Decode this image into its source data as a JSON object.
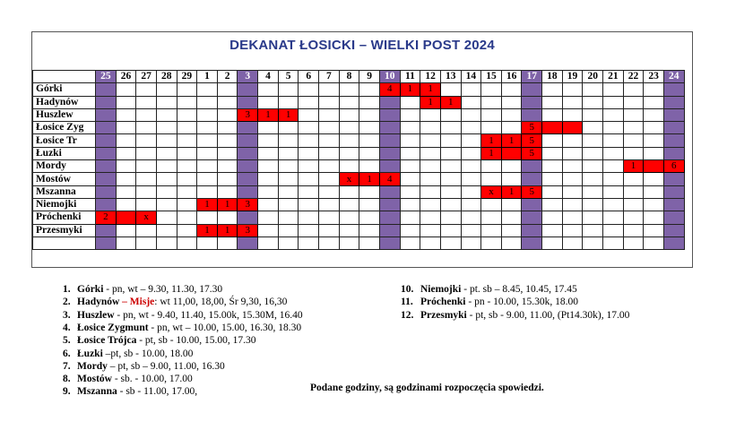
{
  "title": "DEKANAT ŁOSICKI – WIELKI POST 2024",
  "days": [
    "25",
    "26",
    "27",
    "28",
    "29",
    "1",
    "2",
    "3",
    "4",
    "5",
    "6",
    "7",
    "8",
    "9",
    "10",
    "11",
    "12",
    "13",
    "14",
    "15",
    "16",
    "17",
    "18",
    "19",
    "20",
    "21",
    "22",
    "23",
    "24"
  ],
  "sundays": [
    0,
    7,
    14,
    21,
    28
  ],
  "rows": [
    {
      "name": "Górki",
      "cells": {
        "14": "4",
        "15": "1",
        "16": "1"
      }
    },
    {
      "name": "Hadynów",
      "cells": {
        "16": "1",
        "17": "1"
      }
    },
    {
      "name": "Huszlew",
      "cells": {
        "7": "3",
        "8": "1",
        "9": "1"
      }
    },
    {
      "name": "Łosice Zyg",
      "cells": {
        "21": "5",
        "22": "",
        "23": ""
      }
    },
    {
      "name": "Łosice Tr",
      "cells": {
        "19": "1",
        "20": "1",
        "21": "5"
      }
    },
    {
      "name": "Łuzki",
      "cells": {
        "19": "1",
        "20": "",
        "21": "5"
      }
    },
    {
      "name": "Mordy",
      "cells": {
        "26": "1",
        "27": "",
        "28": "6"
      }
    },
    {
      "name": "Mostów",
      "cells": {
        "12": "x",
        "13": "1",
        "14": "4"
      }
    },
    {
      "name": "Mszanna",
      "cells": {
        "19": "x",
        "20": "1",
        "21": "5"
      }
    },
    {
      "name": "Niemojki",
      "cells": {
        "5": "1",
        "6": "1",
        "7": "3"
      }
    },
    {
      "name": "Próchenki",
      "cells": {
        "0": "2",
        "1": "",
        "2": "x"
      }
    },
    {
      "name": "Przesmyki",
      "cells": {
        "5": "1",
        "6": "1",
        "7": "3"
      }
    },
    {
      "name": "",
      "cells": {}
    }
  ],
  "legend": [
    {
      "num": "1.",
      "name": "Górki",
      "text": " - pn, wt – 9.30, 11.30, 17.30"
    },
    {
      "num": "2.",
      "name": "Hadynów",
      "misje": " – Misje",
      "text": ": wt 11,00, 18,00, Śr 9,30, 16,30"
    },
    {
      "num": "3.",
      "name": "Huszlew",
      "text": " - pn, wt - 9.40, 11.40, 15.00k, 15.30M, 16.40"
    },
    {
      "num": "4.",
      "name": "Łosice Zygmunt",
      "text": " - pn, wt – 10.00, 15.00, 16.30,  18.30"
    },
    {
      "num": "5.",
      "name": "Łosice Trójca",
      "text": " - pt, sb - 10.00, 15.00, 17.30"
    },
    {
      "num": "6.",
      "name": "Łuzki",
      "text": " –pt, sb - 10.00, 18.00"
    },
    {
      "num": "7.",
      "name": "Mordy",
      "text": " – pt, sb – 9.00, 11.00, 16.30"
    },
    {
      "num": "8.",
      "name": "Mostów",
      "text": " -  sb. - 10.00, 17.00"
    },
    {
      "num": "9.",
      "name": "Mszanna",
      "text": " - sb - 11.00, 17.00,"
    },
    {
      "num": "10.",
      "name": "Niemojki",
      "text": " - pt. sb – 8.45, 10.45, 17.45"
    },
    {
      "num": "11.",
      "name": "Próchenki",
      "text": " - pn - 10.00, 15.30k, 18.00"
    },
    {
      "num": "12.",
      "name": "Przesmyki",
      "text": " - pt, sb - 9.00, 11.00, (Pt14.30k), 17.00"
    }
  ],
  "note": "Podane godziny, są godzinami rozpoczęcia spowiedzi."
}
